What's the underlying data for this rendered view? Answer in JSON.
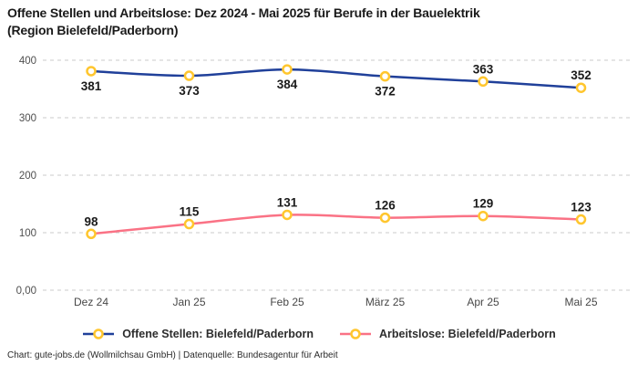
{
  "title_line1": "Offene Stellen und Arbeitslose: Dez 2024 - Mai 2025 für Berufe in der Bauelektrik",
  "title_line2": "(Region Bielefeld/Paderborn)",
  "footer": {
    "credit": "Chart: gute-jobs.de (Wollmilchsau GmbH) | Datenquelle: Bundesagentur für Arbeit"
  },
  "colors": {
    "grid": "#cbcbcb",
    "axis_text": "#4f4f4f",
    "data_label": "#1b1b1b",
    "series_open_positions": "#20409a",
    "series_unemployed": "#fa7285",
    "marker_ring": "#ffc62e"
  },
  "chart_data": {
    "type": "line",
    "title": "Offene Stellen und Arbeitslose: Dez 2024 - Mai 2025 für Berufe in der Bauelektrik (Region Bielefeld/Paderborn)",
    "categories": [
      "Dez 24",
      "Jan 25",
      "Feb 25",
      "März 25",
      "Apr 25",
      "Mai 25"
    ],
    "series": [
      {
        "name": "Offene Stellen: Bielefeld/Paderborn",
        "values": [
          381,
          373,
          384,
          372,
          363,
          352
        ],
        "color": "#20409a",
        "label_positions": [
          "below",
          "below",
          "below",
          "below",
          "above",
          "above"
        ]
      },
      {
        "name": "Arbeitslose: Bielefeld/Paderborn",
        "values": [
          98,
          115,
          131,
          126,
          129,
          123
        ],
        "color": "#fa7285",
        "label_positions": [
          "above",
          "above",
          "above",
          "above",
          "above",
          "above"
        ]
      }
    ],
    "marker": {
      "fill": "#ffffff",
      "stroke": "#ffc62e"
    },
    "ylim": [
      0,
      400
    ],
    "yticks": [
      {
        "value": 400,
        "label": "400"
      },
      {
        "value": 300,
        "label": "300"
      },
      {
        "value": 200,
        "label": "200"
      },
      {
        "value": 100,
        "label": "100"
      },
      {
        "value": 0,
        "label": "0,00"
      }
    ],
    "grid": "horizontal-dashed",
    "legend_position": "bottom",
    "xlabel": "",
    "ylabel": ""
  }
}
